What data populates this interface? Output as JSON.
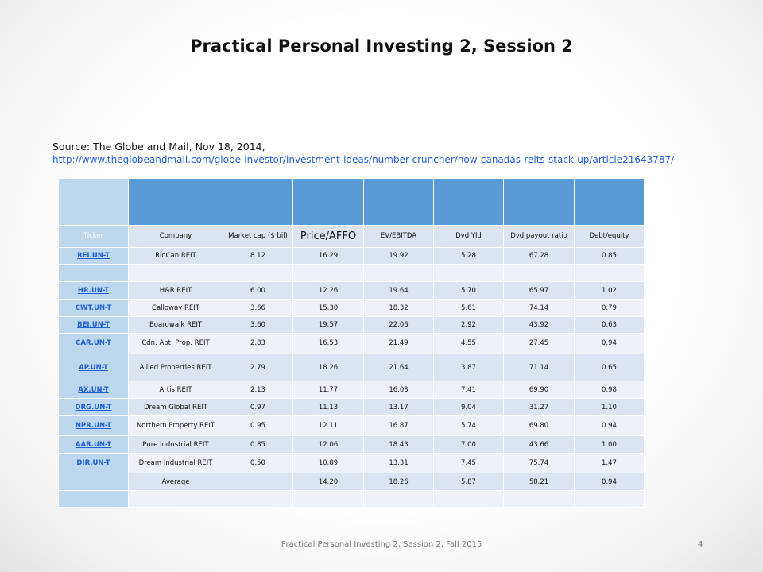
{
  "slide": {
    "title": "Practical Personal Investing 2, Session 2",
    "source_prefix": "Source: The Globe and Mail, Nov 18, 2014,",
    "source_url": "http://www.theglobeandmail.com/globe-investor/investment-ideas/number-cruncher/how-canadas-reits-stack-up/article21643787/",
    "footer": "Practical Personal Investing 2, Session 2, Fall 2015",
    "page_number": "4"
  },
  "colors": {
    "header_blue": "#5b9bd5",
    "first_col": "#bdd7ee",
    "band_a": "#dbe4f0",
    "band_b": "#eef2f8",
    "link": "#1f5fd1"
  },
  "table": {
    "headers": [
      "Ticker",
      "Company",
      "Market cap ($ bil)",
      "Price/AFFO",
      "EV/EBITDA",
      "Dvd Yld",
      "Dvd payout ratio",
      "Debt/equity"
    ],
    "rows": [
      [
        "REI.UN-T",
        "RioCan REIT",
        "8.12",
        "16.29",
        "19.92",
        "5.28",
        "67.28",
        "0.85"
      ],
      [
        "",
        "",
        "",
        "",
        "",
        "",
        "",
        ""
      ],
      [
        "HR.UN-T",
        "H&R REIT",
        "6.00",
        "12.26",
        "19.64",
        "5.70",
        "65.97",
        "1.02"
      ],
      [
        "CWT.UN-T",
        "Calloway REIT",
        "3.66",
        "15.30",
        "18.32",
        "5.61",
        "74.14",
        "0.79"
      ],
      [
        "BEI.UN-T",
        "Boardwalk REIT",
        "3.60",
        "19.57",
        "22.06",
        "2.92",
        "43.92",
        "0.63"
      ],
      [
        "CAR.UN-T",
        "Cdn. Apt. Prop. REIT",
        "2.83",
        "16.53",
        "21.49",
        "4.55",
        "27.45",
        "0.94"
      ],
      [
        "AP.UN-T",
        "Allied Properties REIT",
        "2.79",
        "18.26",
        "21.64",
        "3.87",
        "71.14",
        "0.65"
      ],
      [
        "AX.UN-T",
        "Artis REIT",
        "2.13",
        "11.77",
        "16.03",
        "7.41",
        "69.90",
        "0.98"
      ],
      [
        "DRG.UN-T",
        "Dream Global REIT",
        "0.97",
        "11.13",
        "13.17",
        "9.04",
        "31.27",
        "1.10"
      ],
      [
        "NPR.UN-T",
        "Northern Property REIT",
        "0.95",
        "12.11",
        "16.87",
        "5.74",
        "69.80",
        "0.94"
      ],
      [
        "AAR.UN-T",
        "Pure Industrial REIT",
        "0.85",
        "12.06",
        "18.43",
        "7.00",
        "43.66",
        "1.00"
      ],
      [
        "DIR.UN-T",
        "Dream Industrial REIT",
        "0.50",
        "10.89",
        "13.31",
        "7.45",
        "75.74",
        "1.47"
      ],
      [
        "",
        "Average",
        "",
        "14.20",
        "18.26",
        "5.87",
        "58.21",
        "0.94"
      ],
      [
        "",
        "",
        "",
        "",
        "",
        "",
        "",
        ""
      ]
    ]
  }
}
